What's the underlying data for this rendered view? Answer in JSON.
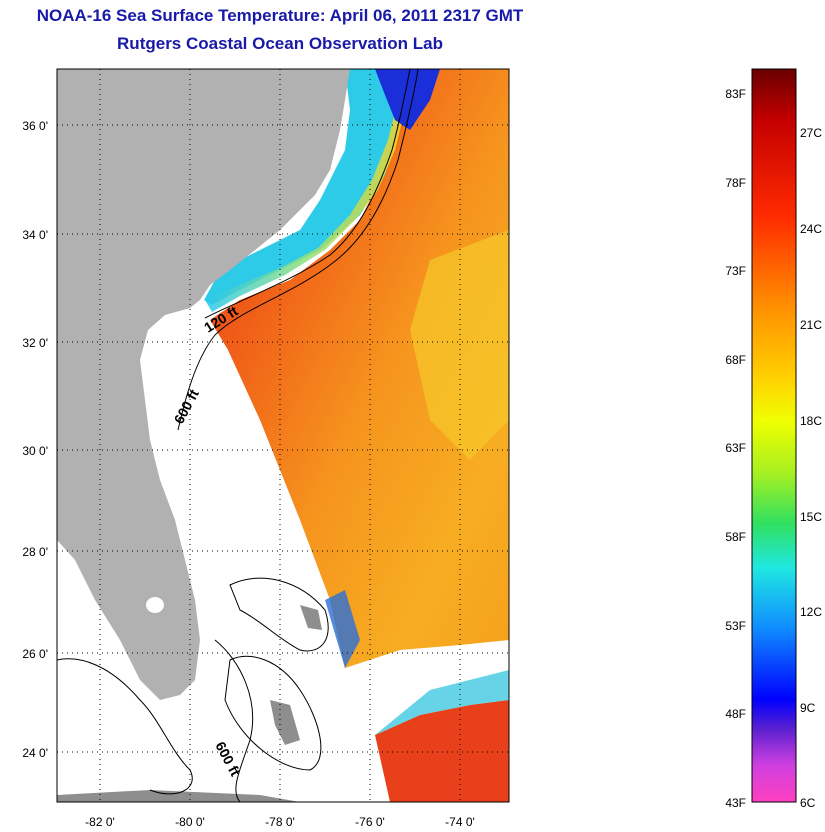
{
  "header": {
    "title": "NOAA-16 Sea Surface Temperature:  April 06, 2011 2317 GMT",
    "subtitle": "Rutgers Coastal Ocean Observation Lab"
  },
  "map": {
    "lat_ticks": [
      "24 0'",
      "26 0'",
      "28 0'",
      "30 0'",
      "32 0'",
      "34 0'",
      "36 0'"
    ],
    "lon_ticks": [
      "-82 0'",
      "-80 0'",
      "-78 0'",
      "-76 0'",
      "-74 0'"
    ],
    "contour_labels": [
      {
        "text": "120 ft"
      },
      {
        "text": "600 ft"
      },
      {
        "text": "600 ft"
      }
    ],
    "colors": {
      "land": "#b1b1b1",
      "ocean_no_data": "#ffffff",
      "warm": "#f24414",
      "mid": "#f7a51c",
      "cool": "#30d0f0"
    }
  },
  "colorbar": {
    "fahrenheit": [
      "83F",
      "78F",
      "73F",
      "68F",
      "63F",
      "58F",
      "53F",
      "48F",
      "43F"
    ],
    "celsius": [
      "27C",
      "24C",
      "21C",
      "18C",
      "15C",
      "12C",
      "9C",
      "6C"
    ]
  }
}
